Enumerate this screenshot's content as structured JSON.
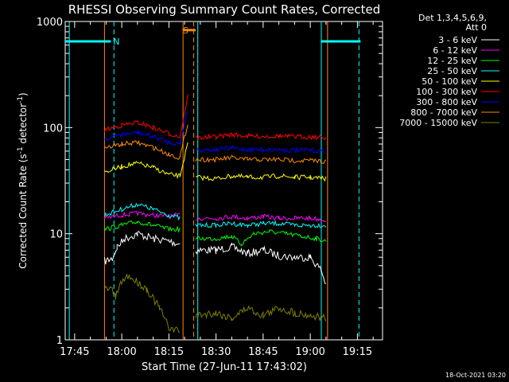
{
  "chart_data": {
    "type": "line",
    "title": "RHESSI Observing Summary Count Rates, Corrected",
    "xlabel": "Start Time (27-Jun-11 17:43:02)",
    "ylabel_main": "Corrected Count Rate (s",
    "ylabel_sup1": "-1",
    "ylabel_mid": " detector",
    "ylabel_sup2": "-1",
    "ylabel_end": ")",
    "yscale": "log",
    "ylim": [
      1,
      1000
    ],
    "xlim_minutes": [
      -3.0,
      98.0
    ],
    "xlim_label": [
      "17:43:02",
      "19:24:02"
    ],
    "x_ticks": [
      "17:45",
      "18:00",
      "18:15",
      "18:30",
      "18:45",
      "19:00",
      "19:15"
    ],
    "x_tick_minutes": [
      0,
      15,
      30,
      45,
      60,
      75,
      90
    ],
    "y_ticks": [
      "1",
      "10",
      "100",
      "1000"
    ],
    "y_tick_values": [
      1,
      10,
      100,
      1000
    ],
    "legend_header": [
      "Det 1,3,4,5,6,9,",
      "Att 0"
    ],
    "legend_placement": "right",
    "series": [
      {
        "name": "3 - 6 keV",
        "color": "#ffffff",
        "segments": [
          [
            [
              9.5,
              5.5
            ],
            [
              12,
              5.8
            ],
            [
              13.5,
              7.5
            ],
            [
              16,
              9
            ],
            [
              20,
              10
            ],
            [
              25,
              9
            ],
            [
              30,
              8.5
            ],
            [
              33.5,
              8
            ]
          ],
          [
            [
              38.5,
              7
            ],
            [
              45,
              7
            ],
            [
              50,
              7.5
            ],
            [
              55,
              6.5
            ],
            [
              60,
              7
            ],
            [
              65,
              6.2
            ],
            [
              70,
              6
            ],
            [
              75,
              6
            ],
            [
              78.5,
              4.5
            ],
            [
              80,
              3.3
            ]
          ]
        ]
      },
      {
        "name": "6 - 12 keV",
        "color": "#ff00ff",
        "segments": [
          [
            [
              9.5,
              14
            ],
            [
              15,
              15
            ],
            [
              20,
              15.5
            ],
            [
              25,
              15
            ],
            [
              30,
              14.5
            ],
            [
              33.5,
              15
            ]
          ],
          [
            [
              38.5,
              14
            ],
            [
              45,
              14
            ],
            [
              50,
              14.5
            ],
            [
              55,
              14
            ],
            [
              60,
              14.5
            ],
            [
              65,
              14
            ],
            [
              70,
              14
            ],
            [
              75,
              14
            ],
            [
              80,
              13.5
            ]
          ]
        ]
      },
      {
        "name": "12 - 25 keV",
        "color": "#00ff00",
        "segments": [
          [
            [
              9.5,
              11
            ],
            [
              15,
              12
            ],
            [
              20,
              13
            ],
            [
              25,
              12
            ],
            [
              30,
              11
            ],
            [
              33.5,
              11
            ]
          ],
          [
            [
              38.5,
              9
            ],
            [
              45,
              9
            ],
            [
              50,
              9.5
            ],
            [
              53,
              8
            ],
            [
              57,
              10
            ],
            [
              62,
              10.5
            ],
            [
              67,
              10
            ],
            [
              72,
              9.5
            ],
            [
              77,
              9
            ],
            [
              80,
              8.5
            ]
          ]
        ]
      },
      {
        "name": "25 - 50 keV",
        "color": "#00ffff",
        "segments": [
          [
            [
              9.5,
              15
            ],
            [
              15,
              17
            ],
            [
              20,
              19
            ],
            [
              25,
              17
            ],
            [
              30,
              15
            ],
            [
              33.5,
              14
            ]
          ],
          [
            [
              38.5,
              12
            ],
            [
              45,
              12
            ],
            [
              50,
              12.5
            ],
            [
              55,
              12
            ],
            [
              60,
              12.5
            ],
            [
              65,
              12.5
            ],
            [
              70,
              12
            ],
            [
              75,
              12
            ],
            [
              80,
              12
            ]
          ]
        ]
      },
      {
        "name": "50 - 100 keV",
        "color": "#ffff00",
        "segments": [
          [
            [
              9.5,
              38
            ],
            [
              15,
              43
            ],
            [
              20,
              46
            ],
            [
              25,
              42
            ],
            [
              30,
              36
            ],
            [
              33.5,
              35
            ],
            [
              36,
              70
            ]
          ],
          [
            [
              38.5,
              34
            ],
            [
              45,
              33
            ],
            [
              50,
              35
            ],
            [
              55,
              34
            ],
            [
              60,
              34
            ],
            [
              65,
              35
            ],
            [
              70,
              34
            ],
            [
              75,
              34
            ],
            [
              80,
              33
            ]
          ]
        ]
      },
      {
        "name": "100 - 300 keV",
        "color": "#ff0000",
        "segments": [
          [
            [
              9.5,
              95
            ],
            [
              15,
              105
            ],
            [
              20,
              112
            ],
            [
              25,
              100
            ],
            [
              30,
              88
            ],
            [
              33.5,
              82
            ],
            [
              36,
              200
            ]
          ],
          [
            [
              38.5,
              80
            ],
            [
              45,
              82
            ],
            [
              50,
              86
            ],
            [
              55,
              83
            ],
            [
              60,
              83
            ],
            [
              65,
              83
            ],
            [
              70,
              82
            ],
            [
              75,
              82
            ],
            [
              80,
              80
            ]
          ]
        ]
      },
      {
        "name": "300 - 800 keV",
        "color": "#0000ff",
        "segments": [
          [
            [
              9.5,
              78
            ],
            [
              15,
              86
            ],
            [
              20,
              90
            ],
            [
              25,
              82
            ],
            [
              30,
              73
            ],
            [
              33.5,
              70
            ],
            [
              36,
              150
            ]
          ],
          [
            [
              38.5,
              62
            ],
            [
              45,
              62
            ],
            [
              50,
              64
            ],
            [
              55,
              62
            ],
            [
              60,
              62
            ],
            [
              65,
              62
            ],
            [
              70,
              61
            ],
            [
              75,
              61
            ],
            [
              80,
              60
            ]
          ]
        ]
      },
      {
        "name": "800 - 7000 keV",
        "color": "#ff8c00",
        "segments": [
          [
            [
              9.5,
              64
            ],
            [
              15,
              70
            ],
            [
              20,
              72
            ],
            [
              25,
              65
            ],
            [
              30,
              56
            ],
            [
              33.5,
              52
            ],
            [
              36,
              110
            ]
          ],
          [
            [
              38.5,
              50
            ],
            [
              45,
              50
            ],
            [
              50,
              52
            ],
            [
              55,
              50
            ],
            [
              60,
              50
            ],
            [
              65,
              50
            ],
            [
              70,
              49
            ],
            [
              75,
              49
            ],
            [
              80,
              48
            ]
          ]
        ]
      },
      {
        "name": "7000 - 15000 keV",
        "color": "#808000",
        "segments": [
          [
            [
              9.5,
              3
            ],
            [
              12,
              3
            ],
            [
              13,
              2.5
            ],
            [
              15,
              3.5
            ],
            [
              17,
              4
            ],
            [
              20,
              3.5
            ],
            [
              23,
              3
            ],
            [
              27,
              2
            ],
            [
              30,
              1.3
            ],
            [
              33.5,
              1.2
            ]
          ],
          [
            [
              38.5,
              1.7
            ],
            [
              45,
              1.8
            ],
            [
              50,
              1.6
            ],
            [
              55,
              2
            ],
            [
              60,
              1.7
            ],
            [
              65,
              2
            ],
            [
              70,
              1.8
            ],
            [
              75,
              1.7
            ],
            [
              80,
              1.6
            ]
          ]
        ]
      }
    ],
    "vertical_lines": [
      {
        "color": "#00ffff",
        "style": "solid",
        "minutes": -1.7
      },
      {
        "color": "#ff8c00",
        "style": "solid",
        "minutes": 9.5
      },
      {
        "color": "#00ffff",
        "style": "dashed",
        "minutes": 12.5
      },
      {
        "color": "#ff8c00",
        "style": "solid",
        "minutes": 34.5
      },
      {
        "color": "#ff8c00",
        "style": "dashed",
        "minutes": 37.9
      },
      {
        "color": "#00ffff",
        "style": "solid",
        "minutes": 39.2
      },
      {
        "color": "#00ffff",
        "style": "solid",
        "minutes": 78.5
      },
      {
        "color": "#ff8c00",
        "style": "solid",
        "minutes": 80.5
      },
      {
        "color": "#00ffff",
        "style": "dashed",
        "minutes": 90.5
      }
    ],
    "flags": [
      {
        "label": "N",
        "color": "#00ffff",
        "segments": [
          [
            -3.0,
            11.5
          ],
          [
            78.5,
            91.0
          ]
        ],
        "level": 650
      },
      {
        "label": "S",
        "color": "#ff8c00",
        "segments": [
          [
            34.5,
            38.5
          ]
        ],
        "level": 830
      }
    ],
    "timestamp": "18-Oct-2021 03:20"
  }
}
